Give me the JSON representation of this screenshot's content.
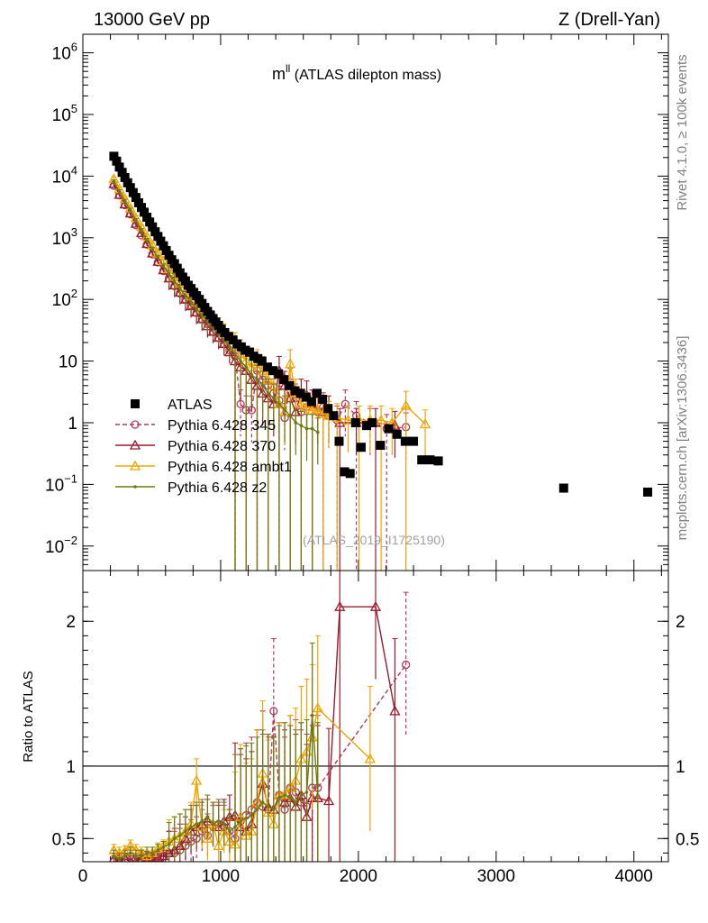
{
  "header": {
    "left": "13000 GeV pp",
    "right": "Z (Drell-Yan)"
  },
  "side_labels": {
    "rivet": "Rivet 4.1.0, ≥ 100k events",
    "mcplots": "mcplots.cern.ch [arXiv:1306.3436]"
  },
  "colors": {
    "atlas": "#000000",
    "p345": "#b03a5a",
    "p370": "#9a1b2e",
    "ambt1": "#f0a500",
    "z2": "#6b7a12"
  },
  "chart_data": [
    {
      "type": "scatter",
      "panel": "main",
      "title_main": "m",
      "title_sup": "ll",
      "title_rest": " (ATLAS dilepton mass)",
      "watermark": "(ATLAS_2019_I1725190)",
      "ylog": true,
      "ylim": [
        0.004,
        2000000
      ],
      "xlim": [
        0,
        4250
      ],
      "yticks": [
        {
          "value": 0.01,
          "base": "10",
          "exp": "−2"
        },
        {
          "value": 0.1,
          "base": "10",
          "exp": "−1"
        },
        {
          "value": 1,
          "base": "1",
          "exp": ""
        },
        {
          "value": 10,
          "base": "10",
          "exp": ""
        },
        {
          "value": 100,
          "base": "10",
          "exp": "2"
        },
        {
          "value": 1000,
          "base": "10",
          "exp": "3"
        },
        {
          "value": 10000,
          "base": "10",
          "exp": "4"
        },
        {
          "value": 100000,
          "base": "10",
          "exp": "5"
        },
        {
          "value": 1000000,
          "base": "10",
          "exp": "6"
        }
      ],
      "legend": [
        {
          "label": "ATLAS",
          "key": "atlas"
        },
        {
          "label": "Pythia 6.428 345",
          "key": "p345"
        },
        {
          "label": "Pythia 6.428 370",
          "key": "p370"
        },
        {
          "label": "Pythia 6.428 ambt1",
          "key": "ambt1"
        },
        {
          "label": "Pythia 6.428 z2",
          "key": "z2"
        }
      ],
      "series": [
        {
          "name": "ATLAS",
          "key": "atlas",
          "marker": "square",
          "x": [
            225,
            245,
            265,
            285,
            305,
            325,
            345,
            365,
            385,
            405,
            425,
            445,
            465,
            485,
            505,
            525,
            545,
            565,
            585,
            605,
            625,
            645,
            665,
            685,
            705,
            725,
            745,
            765,
            785,
            805,
            825,
            845,
            865,
            885,
            905,
            925,
            945,
            965,
            985,
            1005,
            1030,
            1060,
            1090,
            1120,
            1150,
            1180,
            1210,
            1240,
            1270,
            1300,
            1340,
            1380,
            1420,
            1460,
            1500,
            1540,
            1580,
            1620,
            1660,
            1700,
            1740,
            1780,
            1820,
            1860,
            1900,
            1940,
            1980,
            2020,
            2060,
            2100,
            2160,
            2220,
            2280,
            2340,
            2400,
            2460,
            2520,
            2580,
            3490,
            4100
          ],
          "values": [
            21000,
            17500,
            14000,
            11500,
            9500,
            7800,
            6500,
            5400,
            4500,
            3700,
            3100,
            2600,
            2150,
            1800,
            1500,
            1250,
            1050,
            880,
            740,
            620,
            520,
            440,
            380,
            320,
            270,
            230,
            200,
            170,
            150,
            130,
            115,
            100,
            86,
            74,
            64,
            56,
            49,
            43,
            38,
            33,
            29,
            25,
            22,
            19,
            17,
            15,
            14,
            12,
            11,
            10,
            8,
            7,
            6.2,
            5,
            4,
            3.3,
            3,
            2.6,
            2.2,
            3,
            2.4,
            1.7,
            1.3,
            0.5,
            0.16,
            0.15,
            1.0,
            0.4,
            0.9,
            1.0,
            0.43,
            0.8,
            0.65,
            0.5,
            0.5,
            0.25,
            0.25,
            0.24,
            0.087,
            0.075
          ]
        },
        {
          "name": "Pythia 6.428 345",
          "key": "p345",
          "marker": "circle",
          "dash": true,
          "x": [
            225,
            265,
            305,
            345,
            385,
            425,
            465,
            505,
            545,
            585,
            625,
            665,
            705,
            745,
            785,
            825,
            865,
            905,
            945,
            985,
            1025,
            1065,
            1105,
            1145,
            1185,
            1225,
            1265,
            1305,
            1345,
            1385,
            1425,
            1465,
            1505,
            1545,
            1585,
            1625,
            1665,
            1705,
            1745,
            1785,
            1845,
            1905,
            1985,
            2085,
            2205,
            2345
          ],
          "values": [
            7000,
            4900,
            3400,
            2400,
            1600,
            1100,
            780,
            540,
            400,
            290,
            220,
            165,
            125,
            100,
            80,
            60,
            48,
            40,
            30,
            24,
            19,
            15,
            12,
            2,
            1.6,
            1.6,
            7,
            5,
            4,
            3,
            2.3,
            1.2,
            4.5,
            2.5,
            1.5,
            1.8,
            2.0,
            1.5,
            1.8,
            1.3,
            1.1,
            2.0,
            1.3,
            1.0,
            0.8,
            0.85
          ]
        },
        {
          "name": "Pythia 6.428 370",
          "key": "p370",
          "marker": "triangle",
          "x": [
            225,
            265,
            305,
            345,
            385,
            425,
            465,
            505,
            545,
            585,
            625,
            665,
            705,
            745,
            785,
            825,
            865,
            905,
            945,
            985,
            1025,
            1065,
            1105,
            1145,
            1185,
            1225,
            1265,
            1305,
            1345,
            1385,
            1425,
            1465,
            1505,
            1545,
            1585,
            1625,
            1665,
            1705,
            1745,
            1785,
            1865,
            1985,
            2125,
            2265
          ],
          "values": [
            7500,
            5000,
            3500,
            2500,
            1700,
            1200,
            800,
            560,
            410,
            300,
            220,
            170,
            130,
            100,
            78,
            62,
            48,
            37,
            30,
            24,
            19,
            14,
            10,
            8,
            7,
            5,
            4,
            3,
            2.5,
            2,
            7,
            4,
            2.5,
            1.5,
            3,
            2.8,
            2,
            1.6,
            1.5,
            1.6,
            1.0,
            1.0,
            1.0,
            0.9
          ]
        },
        {
          "name": "Pythia 6.428 ambt1",
          "key": "ambt1",
          "marker": "triangle",
          "x": [
            225,
            265,
            305,
            345,
            385,
            425,
            465,
            505,
            545,
            585,
            625,
            665,
            705,
            745,
            785,
            825,
            865,
            905,
            945,
            985,
            1025,
            1065,
            1105,
            1145,
            1185,
            1225,
            1265,
            1305,
            1345,
            1385,
            1425,
            1465,
            1505,
            1545,
            1585,
            1625,
            1665,
            1705,
            1745,
            1785,
            1845,
            1925,
            2005,
            2085,
            2165,
            2245,
            2345,
            2485
          ],
          "values": [
            9000,
            6200,
            4300,
            3000,
            2100,
            1500,
            1050,
            760,
            560,
            420,
            310,
            235,
            180,
            140,
            112,
            90,
            70,
            55,
            45,
            37,
            30,
            22,
            17,
            13,
            10,
            8,
            9,
            7,
            5,
            4,
            2,
            1.5,
            9,
            3,
            2,
            1.8,
            1.6,
            1.6,
            1.4,
            1.3,
            1.2,
            1.1,
            1.1,
            1.1,
            1.1,
            1.0,
            1.9,
            0.95
          ]
        },
        {
          "name": "Pythia 6.428 z2",
          "key": "z2",
          "marker": "dot",
          "x": [
            225,
            265,
            305,
            345,
            385,
            425,
            465,
            505,
            545,
            585,
            625,
            665,
            705,
            745,
            785,
            825,
            865,
            905,
            945,
            985,
            1025,
            1065,
            1105,
            1145,
            1185,
            1225,
            1265,
            1305,
            1345,
            1385,
            1425,
            1465,
            1505,
            1545,
            1585,
            1625,
            1665,
            1705
          ],
          "values": [
            8000,
            5600,
            3900,
            2800,
            1900,
            1300,
            900,
            650,
            480,
            350,
            260,
            195,
            150,
            115,
            90,
            70,
            55,
            44,
            35,
            28,
            22,
            17,
            13,
            10,
            8,
            6,
            5,
            4,
            3,
            2.5,
            2,
            1.6,
            1.3,
            1.0,
            0.9,
            0.8,
            0.8,
            0.7
          ]
        }
      ]
    },
    {
      "type": "line",
      "panel": "ratio",
      "ylabel": "Ratio to ATLAS",
      "ylim": [
        0.34,
        2.35
      ],
      "xlim": [
        0,
        4250
      ],
      "reference_line": 1,
      "yticks": [
        {
          "value": 0.5,
          "label": "0.5"
        },
        {
          "value": 1,
          "label": "1"
        },
        {
          "value": 2,
          "label": "2"
        }
      ],
      "xticks": [
        {
          "value": 0,
          "label": "0"
        },
        {
          "value": 1000,
          "label": "1000"
        },
        {
          "value": 2000,
          "label": "2000"
        },
        {
          "value": 3000,
          "label": "3000"
        },
        {
          "value": 4000,
          "label": "4000"
        }
      ],
      "series": [
        {
          "name": "Pythia 6.428 345",
          "key": "p345",
          "marker": "circle",
          "dash": true,
          "x": [
            225,
            265,
            305,
            345,
            385,
            425,
            465,
            505,
            545,
            585,
            625,
            665,
            705,
            745,
            785,
            825,
            865,
            905,
            945,
            985,
            1025,
            1065,
            1105,
            1145,
            1185,
            1225,
            1265,
            1305,
            1345,
            1385,
            1425,
            1465,
            1505,
            1545,
            1585,
            1625,
            1665,
            1705,
            2345
          ],
          "values": [
            0.34,
            0.36,
            0.35,
            0.38,
            0.36,
            0.36,
            0.37,
            0.36,
            0.38,
            0.38,
            0.4,
            0.4,
            0.42,
            0.45,
            0.48,
            0.5,
            0.55,
            0.52,
            0.58,
            0.6,
            0.58,
            0.55,
            0.5,
            0.62,
            0.66,
            0.7,
            0.75,
            0.72,
            0.7,
            1.38,
            0.8,
            0.7,
            0.85,
            0.82,
            0.75,
            0.72,
            0.85,
            0.85,
            1.7
          ]
        },
        {
          "name": "Pythia 6.428 370",
          "key": "p370",
          "marker": "triangle",
          "x": [
            225,
            265,
            305,
            345,
            385,
            425,
            465,
            505,
            545,
            585,
            625,
            665,
            705,
            745,
            785,
            825,
            865,
            905,
            945,
            985,
            1025,
            1065,
            1105,
            1145,
            1185,
            1225,
            1265,
            1305,
            1345,
            1385,
            1425,
            1465,
            1505,
            1545,
            1585,
            1625,
            1665,
            1705,
            1785,
            1865,
            2125,
            2265
          ],
          "values": [
            0.36,
            0.35,
            0.36,
            0.34,
            0.34,
            0.38,
            0.37,
            0.35,
            0.37,
            0.38,
            0.4,
            0.42,
            0.45,
            0.5,
            0.55,
            0.58,
            0.6,
            0.62,
            0.6,
            0.58,
            0.62,
            0.65,
            0.66,
            0.58,
            0.55,
            0.6,
            0.75,
            0.88,
            0.72,
            0.7,
            0.8,
            0.75,
            0.78,
            0.72,
            0.8,
            0.65,
            0.78,
            0.78,
            0.76,
            2.1,
            2.1,
            1.38
          ]
        },
        {
          "name": "Pythia 6.428 ambt1",
          "key": "ambt1",
          "marker": "triangle",
          "x": [
            225,
            265,
            305,
            345,
            385,
            425,
            465,
            505,
            545,
            585,
            625,
            665,
            705,
            745,
            785,
            825,
            865,
            905,
            945,
            985,
            1025,
            1065,
            1105,
            1145,
            1185,
            1225,
            1265,
            1305,
            1345,
            1385,
            1425,
            1465,
            1505,
            1545,
            1585,
            1625,
            1665,
            1705,
            2085
          ],
          "values": [
            0.42,
            0.4,
            0.41,
            0.45,
            0.42,
            0.4,
            0.38,
            0.4,
            0.43,
            0.45,
            0.48,
            0.5,
            0.52,
            0.55,
            0.6,
            0.9,
            0.58,
            0.5,
            0.6,
            0.45,
            0.55,
            0.48,
            0.46,
            0.65,
            0.52,
            0.55,
            0.75,
            0.95,
            0.68,
            0.6,
            0.8,
            0.8,
            0.85,
            0.9,
            1.05,
            1.1,
            1.2,
            1.4,
            1.05
          ]
        },
        {
          "name": "Pythia 6.428 z2",
          "key": "z2",
          "marker": "dot",
          "x": [
            225,
            265,
            305,
            345,
            385,
            425,
            465,
            505,
            545,
            585,
            625,
            665,
            705,
            745,
            785,
            825,
            865,
            905,
            945,
            985,
            1025,
            1065,
            1105,
            1145,
            1185,
            1225,
            1265,
            1305,
            1345,
            1385,
            1425,
            1465,
            1505,
            1545,
            1585,
            1625,
            1665,
            1705
          ],
          "values": [
            0.38,
            0.36,
            0.38,
            0.4,
            0.38,
            0.38,
            0.4,
            0.4,
            0.42,
            0.44,
            0.46,
            0.5,
            0.52,
            0.55,
            0.58,
            0.6,
            0.62,
            0.65,
            0.6,
            0.62,
            0.6,
            0.55,
            0.58,
            0.62,
            0.64,
            0.66,
            0.7,
            0.75,
            0.72,
            0.7,
            0.78,
            0.8,
            0.78,
            0.75,
            0.8,
            0.82,
            1.35,
            0.8
          ]
        }
      ]
    }
  ]
}
